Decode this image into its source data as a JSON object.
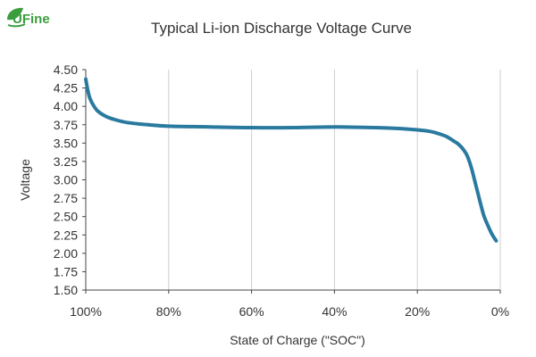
{
  "logo": {
    "text": "UFine",
    "leaf_color": "#3a9e3e"
  },
  "chart_data": {
    "type": "line",
    "title": "Typical Li-ion Discharge Voltage Curve",
    "xlabel": "State of Charge (\"SOC\")",
    "ylabel": "Voltage",
    "xlim": [
      100,
      0
    ],
    "ylim": [
      1.5,
      4.5
    ],
    "x_ticks": [
      100,
      80,
      60,
      40,
      20,
      0
    ],
    "x_tick_labels": [
      "100%",
      "80%",
      "60%",
      "40%",
      "20%",
      "0%"
    ],
    "y_ticks": [
      1.5,
      1.75,
      2.0,
      2.25,
      2.5,
      2.75,
      3.0,
      3.25,
      3.5,
      3.75,
      4.0,
      4.25,
      4.5
    ],
    "y_tick_labels": [
      "1.50",
      "1.75",
      "2.00",
      "2.25",
      "2.50",
      "2.75",
      "3.00",
      "3.25",
      "3.50",
      "3.75",
      "4.00",
      "4.25",
      "4.50"
    ],
    "grid": {
      "vertical": true,
      "horizontal": false
    },
    "legend": "none",
    "line_color": "#2a7aa0",
    "series": [
      {
        "x": [
          100,
          99.5,
          99,
          98,
          97,
          95,
          93,
          90,
          85,
          80,
          70,
          60,
          50,
          40,
          30,
          25,
          20,
          17,
          15,
          13,
          11,
          10,
          9,
          8,
          7,
          6,
          5,
          4,
          3,
          2,
          1
        ],
        "y": [
          4.37,
          4.22,
          4.11,
          4.0,
          3.93,
          3.86,
          3.82,
          3.78,
          3.75,
          3.73,
          3.72,
          3.71,
          3.71,
          3.72,
          3.71,
          3.7,
          3.68,
          3.66,
          3.63,
          3.59,
          3.52,
          3.48,
          3.42,
          3.33,
          3.17,
          2.95,
          2.73,
          2.52,
          2.38,
          2.26,
          2.17
        ]
      }
    ]
  }
}
